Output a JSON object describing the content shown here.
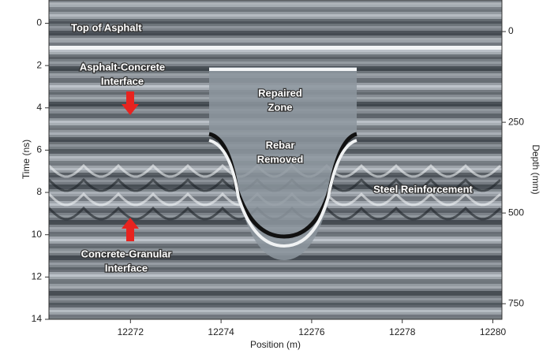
{
  "chart_data": {
    "type": "radargram",
    "xlabel": "Position (m)",
    "ylabel": "Time (ns)",
    "y2label": "Depth (mm)",
    "xlim": [
      12270.2,
      12280.2
    ],
    "xticks": [
      12272,
      12274,
      12276,
      12278,
      12280
    ],
    "ylim": [
      -1.1,
      14
    ],
    "yticks": [
      0,
      2,
      4,
      6,
      8,
      10,
      12,
      14
    ],
    "y2lim": [
      -87,
      793
    ],
    "y2ticks": [
      0,
      250,
      500,
      750
    ],
    "annotations": [
      {
        "lines": [
          "Top of Asphalt"
        ]
      },
      {
        "lines": [
          "Asphalt-Concrete",
          "Interface"
        ]
      },
      {
        "lines": [
          "Repaired",
          "Zone"
        ]
      },
      {
        "lines": [
          "Rebar",
          "Removed"
        ]
      },
      {
        "lines": [
          "Steel Reinforcement"
        ]
      },
      {
        "lines": [
          "Concrete-Granular",
          "Interface"
        ]
      }
    ]
  }
}
